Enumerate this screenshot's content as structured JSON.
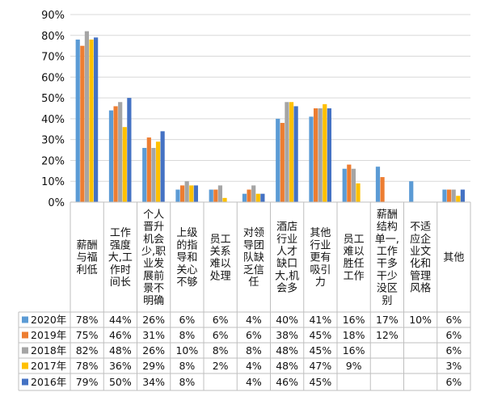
{
  "chart_data": {
    "type": "bar",
    "ylim": [
      0,
      90
    ],
    "ytick_step": 10,
    "grid": true,
    "colors": {
      "2020年": "#5b9bd5",
      "2019年": "#ed7d31",
      "2018年": "#a5a5a5",
      "2017年": "#ffc000",
      "2016年": "#4472c4"
    },
    "y_tick_labels": [
      "0%",
      "10%",
      "20%",
      "30%",
      "40%",
      "50%",
      "60%",
      "70%",
      "80%",
      "90%"
    ],
    "categories": [
      [
        "薪酬",
        "与福",
        "利低"
      ],
      [
        "工作",
        "强度",
        "大,工",
        "作时",
        "间长"
      ],
      [
        "个人",
        "晋升",
        "机会",
        "少,职",
        "业发",
        "展前",
        "景不",
        "明确"
      ],
      [
        "上级",
        "的指",
        "导和",
        "关心",
        "不够"
      ],
      [
        "员工",
        "关系",
        "难以",
        "处理"
      ],
      [
        "对领",
        "导团",
        "队缺",
        "乏信",
        "任"
      ],
      [
        "酒店",
        "行业",
        "人才",
        "缺口",
        "大,机",
        "会多"
      ],
      [
        "其他",
        "行业",
        "更有",
        "吸引",
        "力"
      ],
      [
        "员工",
        "难以",
        "胜任",
        "工作"
      ],
      [
        "薪酬",
        "结构",
        "单一,",
        "工作",
        "干多",
        "干少",
        "没区",
        "别"
      ],
      [
        "不适",
        "应企",
        "业文",
        "化和",
        "管理",
        "风格"
      ],
      [
        "其他"
      ]
    ],
    "series": [
      {
        "name": "2020年",
        "values": [
          78,
          44,
          26,
          6,
          6,
          4,
          40,
          41,
          16,
          17,
          10,
          6
        ],
        "labels": [
          "78%",
          "44%",
          "26%",
          "6%",
          "6%",
          "4%",
          "40%",
          "41%",
          "16%",
          "17%",
          "10%",
          "6%"
        ]
      },
      {
        "name": "2019年",
        "values": [
          75,
          46,
          31,
          8,
          6,
          6,
          38,
          45,
          18,
          12,
          null,
          6
        ],
        "labels": [
          "75%",
          "46%",
          "31%",
          "8%",
          "6%",
          "6%",
          "38%",
          "45%",
          "18%",
          "12%",
          "",
          "6%"
        ]
      },
      {
        "name": "2018年",
        "values": [
          82,
          48,
          26,
          10,
          8,
          8,
          48,
          45,
          16,
          null,
          null,
          6
        ],
        "labels": [
          "82%",
          "48%",
          "26%",
          "10%",
          "8%",
          "8%",
          "48%",
          "45%",
          "16%",
          "",
          "",
          "6%"
        ]
      },
      {
        "name": "2017年",
        "values": [
          78,
          36,
          29,
          8,
          2,
          4,
          48,
          47,
          9,
          null,
          null,
          3
        ],
        "labels": [
          "78%",
          "36%",
          "29%",
          "8%",
          "2%",
          "4%",
          "48%",
          "47%",
          "9%",
          "",
          "",
          "3%"
        ]
      },
      {
        "name": "2016年",
        "values": [
          79,
          50,
          34,
          8,
          null,
          4,
          46,
          45,
          null,
          null,
          null,
          6
        ],
        "labels": [
          "79%",
          "50%",
          "34%",
          "8%",
          "",
          "4%",
          "46%",
          "45%",
          "",
          "",
          "",
          "6%"
        ]
      }
    ]
  }
}
